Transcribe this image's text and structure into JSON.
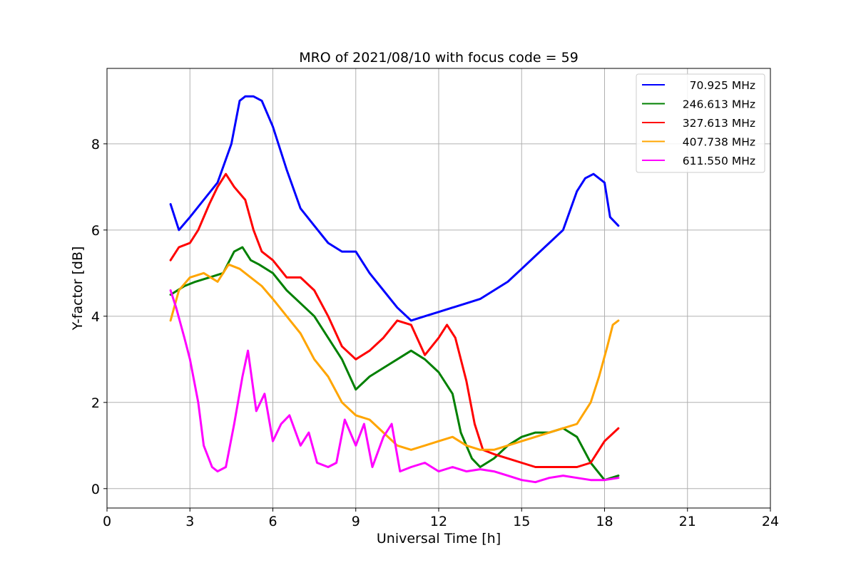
{
  "chart_data": {
    "type": "line",
    "title": "MRO of 2021/08/10 with focus code = 59",
    "xlabel": "Universal Time [h]",
    "ylabel": "Y-factor [dB]",
    "xlim": [
      0,
      24
    ],
    "ylim": [
      -0.45,
      9.75
    ],
    "xticks": [
      0,
      3,
      6,
      9,
      12,
      15,
      18,
      21,
      24
    ],
    "yticks": [
      0,
      2,
      4,
      6,
      8
    ],
    "grid": true,
    "legend_position": "top-right",
    "series": [
      {
        "name": "70.925 MHz",
        "color": "#0000ff",
        "x": [
          2.3,
          2.6,
          3.0,
          3.5,
          4.0,
          4.5,
          4.8,
          5.0,
          5.3,
          5.6,
          6.0,
          6.5,
          7.0,
          7.5,
          8.0,
          8.5,
          9.0,
          9.5,
          10.0,
          10.5,
          11.0,
          11.5,
          12.0,
          12.5,
          13.0,
          13.5,
          14.0,
          14.5,
          15.0,
          15.5,
          16.0,
          16.5,
          17.0,
          17.3,
          17.6,
          18.0,
          18.2,
          18.5
        ],
        "y": [
          6.6,
          6.0,
          6.3,
          6.7,
          7.1,
          8.0,
          9.0,
          9.1,
          9.1,
          9.0,
          8.4,
          7.4,
          6.5,
          6.1,
          5.7,
          5.5,
          5.5,
          5.0,
          4.6,
          4.2,
          3.9,
          4.0,
          4.1,
          4.2,
          4.3,
          4.4,
          4.6,
          4.8,
          5.1,
          5.4,
          5.7,
          6.0,
          6.9,
          7.2,
          7.3,
          7.1,
          6.3,
          6.1
        ]
      },
      {
        "name": "246.613 MHz",
        "color": "#008000",
        "x": [
          2.3,
          2.8,
          3.2,
          3.7,
          4.2,
          4.6,
          4.9,
          5.2,
          5.5,
          6.0,
          6.5,
          7.0,
          7.5,
          8.0,
          8.5,
          9.0,
          9.5,
          10.0,
          10.5,
          11.0,
          11.5,
          12.0,
          12.5,
          12.8,
          13.2,
          13.5,
          14.0,
          14.5,
          15.0,
          15.5,
          16.0,
          16.5,
          17.0,
          17.5,
          18.0,
          18.5
        ],
        "y": [
          4.5,
          4.7,
          4.8,
          4.9,
          5.0,
          5.5,
          5.6,
          5.3,
          5.2,
          5.0,
          4.6,
          4.3,
          4.0,
          3.5,
          3.0,
          2.3,
          2.6,
          2.8,
          3.0,
          3.2,
          3.0,
          2.7,
          2.2,
          1.3,
          0.7,
          0.5,
          0.7,
          1.0,
          1.2,
          1.3,
          1.3,
          1.4,
          1.2,
          0.6,
          0.2,
          0.3
        ]
      },
      {
        "name": "327.613 MHz",
        "color": "#ff0000",
        "x": [
          2.3,
          2.6,
          3.0,
          3.3,
          3.7,
          4.0,
          4.3,
          4.6,
          5.0,
          5.3,
          5.6,
          6.0,
          6.5,
          7.0,
          7.5,
          8.0,
          8.5,
          9.0,
          9.5,
          10.0,
          10.5,
          11.0,
          11.5,
          12.0,
          12.3,
          12.6,
          13.0,
          13.3,
          13.6,
          14.0,
          14.5,
          15.0,
          15.5,
          16.0,
          16.5,
          17.0,
          17.5,
          18.0,
          18.5
        ],
        "y": [
          5.3,
          5.6,
          5.7,
          6.0,
          6.6,
          7.0,
          7.3,
          7.0,
          6.7,
          6.0,
          5.5,
          5.3,
          4.9,
          4.9,
          4.6,
          4.0,
          3.3,
          3.0,
          3.2,
          3.5,
          3.9,
          3.8,
          3.1,
          3.5,
          3.8,
          3.5,
          2.5,
          1.5,
          0.9,
          0.8,
          0.7,
          0.6,
          0.5,
          0.5,
          0.5,
          0.5,
          0.6,
          1.1,
          1.4
        ]
      },
      {
        "name": "407.738 MHz",
        "color": "#ffa500",
        "x": [
          2.3,
          2.6,
          3.0,
          3.5,
          4.0,
          4.4,
          4.8,
          5.2,
          5.6,
          6.0,
          6.5,
          7.0,
          7.5,
          8.0,
          8.5,
          9.0,
          9.5,
          10.0,
          10.5,
          11.0,
          11.5,
          12.0,
          12.5,
          13.0,
          13.5,
          14.0,
          14.5,
          15.0,
          15.5,
          16.0,
          16.5,
          17.0,
          17.5,
          17.8,
          18.1,
          18.3,
          18.5
        ],
        "y": [
          3.9,
          4.6,
          4.9,
          5.0,
          4.8,
          5.2,
          5.1,
          4.9,
          4.7,
          4.4,
          4.0,
          3.6,
          3.0,
          2.6,
          2.0,
          1.7,
          1.6,
          1.3,
          1.0,
          0.9,
          1.0,
          1.1,
          1.2,
          1.0,
          0.9,
          0.9,
          1.0,
          1.1,
          1.2,
          1.3,
          1.4,
          1.5,
          2.0,
          2.6,
          3.3,
          3.8,
          3.9
        ]
      },
      {
        "name": "611.550 MHz",
        "color": "#ff00ff",
        "x": [
          2.3,
          2.5,
          2.8,
          3.0,
          3.3,
          3.5,
          3.8,
          4.0,
          4.3,
          4.6,
          4.9,
          5.1,
          5.4,
          5.7,
          6.0,
          6.3,
          6.6,
          7.0,
          7.3,
          7.6,
          8.0,
          8.3,
          8.6,
          9.0,
          9.3,
          9.6,
          10.0,
          10.3,
          10.6,
          11.0,
          11.5,
          12.0,
          12.5,
          13.0,
          13.5,
          14.0,
          14.5,
          15.0,
          15.5,
          16.0,
          16.5,
          17.0,
          17.5,
          18.0,
          18.5
        ],
        "y": [
          4.6,
          4.2,
          3.5,
          3.0,
          2.0,
          1.0,
          0.5,
          0.4,
          0.5,
          1.5,
          2.6,
          3.2,
          1.8,
          2.2,
          1.1,
          1.5,
          1.7,
          1.0,
          1.3,
          0.6,
          0.5,
          0.6,
          1.6,
          1.0,
          1.5,
          0.5,
          1.2,
          1.5,
          0.4,
          0.5,
          0.6,
          0.4,
          0.5,
          0.4,
          0.45,
          0.4,
          0.3,
          0.2,
          0.15,
          0.25,
          0.3,
          0.25,
          0.2,
          0.2,
          0.25
        ]
      }
    ]
  }
}
